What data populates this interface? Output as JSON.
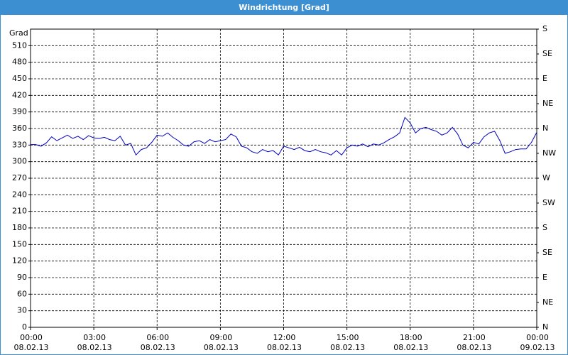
{
  "chart_data": {
    "type": "line",
    "title": "Windrichtung [Grad]",
    "y_label": "Grad",
    "x": [
      0,
      0.25,
      0.5,
      0.75,
      1,
      1.25,
      1.5,
      1.75,
      2,
      2.25,
      2.5,
      2.75,
      3,
      3.25,
      3.5,
      3.75,
      4,
      4.25,
      4.5,
      4.75,
      5,
      5.25,
      5.5,
      5.75,
      6,
      6.25,
      6.5,
      6.75,
      7,
      7.25,
      7.5,
      7.75,
      8,
      8.25,
      8.5,
      8.75,
      9,
      9.25,
      9.5,
      9.75,
      10,
      10.25,
      10.5,
      10.75,
      11,
      11.25,
      11.5,
      11.75,
      12,
      12.25,
      12.5,
      12.75,
      13,
      13.25,
      13.5,
      13.75,
      14,
      14.25,
      14.5,
      14.75,
      15,
      15.25,
      15.5,
      15.75,
      16,
      16.25,
      16.5,
      16.75,
      17,
      17.25,
      17.5,
      17.75,
      18,
      18.25,
      18.5,
      18.75,
      19,
      19.25,
      19.5,
      19.75,
      20,
      20.25,
      20.5,
      20.75,
      21,
      21.25,
      21.5,
      21.75,
      22,
      22.25,
      22.5,
      22.75,
      23,
      23.25,
      23.5,
      23.75,
      24
    ],
    "series": [
      {
        "name": "Windrichtung",
        "color": "#0000c0",
        "values": [
          331,
          331,
          328,
          334,
          345,
          338,
          343,
          348,
          342,
          346,
          340,
          347,
          343,
          342,
          344,
          340,
          338,
          346,
          330,
          333,
          312,
          322,
          325,
          335,
          348,
          346,
          352,
          344,
          338,
          330,
          328,
          336,
          338,
          333,
          340,
          336,
          338,
          340,
          350,
          345,
          328,
          325,
          318,
          315,
          322,
          318,
          320,
          312,
          328,
          325,
          322,
          326,
          320,
          318,
          322,
          318,
          316,
          312,
          320,
          312,
          325,
          330,
          328,
          332,
          327,
          332,
          330,
          334,
          340,
          345,
          352,
          380,
          370,
          352,
          360,
          362,
          358,
          355,
          348,
          352,
          362,
          350,
          330,
          325,
          335,
          332,
          345,
          352,
          355,
          338,
          315,
          318,
          322,
          323,
          323,
          335,
          353
        ]
      }
    ],
    "xlim": [
      0,
      24
    ],
    "xticks": [
      {
        "value": 0,
        "label": "00:00\n08.02.13"
      },
      {
        "value": 3,
        "label": "03:00\n08.02.13"
      },
      {
        "value": 6,
        "label": "06:00\n08.02.13"
      },
      {
        "value": 9,
        "label": "09:00\n08.02.13"
      },
      {
        "value": 12,
        "label": "12:00\n08.02.13"
      },
      {
        "value": 15,
        "label": "15:00\n08.02.13"
      },
      {
        "value": 18,
        "label": "18:00\n08.02.13"
      },
      {
        "value": 21,
        "label": "21:00\n08.02.13"
      },
      {
        "value": 24,
        "label": "00:00\n09.02.13"
      }
    ],
    "ylim": [
      0,
      540
    ],
    "yticks": [
      0,
      30,
      60,
      90,
      120,
      150,
      180,
      210,
      240,
      270,
      300,
      330,
      360,
      390,
      420,
      450,
      480,
      510
    ],
    "y2lim": [
      0,
      540
    ],
    "y2ticks": [
      {
        "value": 0,
        "label": "N"
      },
      {
        "value": 45,
        "label": "NE"
      },
      {
        "value": 90,
        "label": "E"
      },
      {
        "value": 135,
        "label": "SE"
      },
      {
        "value": 180,
        "label": "S"
      },
      {
        "value": 225,
        "label": "SW"
      },
      {
        "value": 270,
        "label": "W"
      },
      {
        "value": 315,
        "label": "NW"
      },
      {
        "value": 360,
        "label": "N"
      },
      {
        "value": 405,
        "label": "NE"
      },
      {
        "value": 450,
        "label": "E"
      },
      {
        "value": 495,
        "label": "SE"
      },
      {
        "value": 540,
        "label": "S"
      }
    ],
    "grid": true
  }
}
